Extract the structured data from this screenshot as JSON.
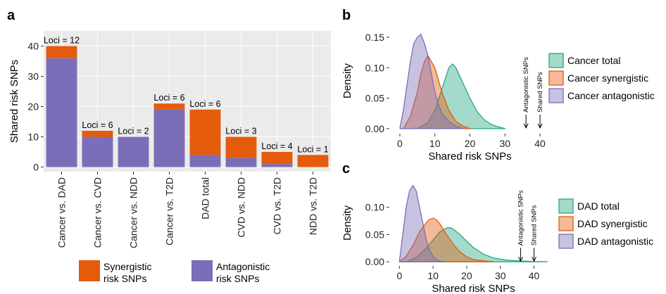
{
  "colors": {
    "synergistic": "#E35B0B",
    "antagonistic": "#7B6DB8",
    "total": "#25A884",
    "panel_bg": "#EBEBEB",
    "grid": "#FFFFFF"
  },
  "chart_data": [
    {
      "panel": "a",
      "type": "bar",
      "stacked": true,
      "ylabel": "Shared risk SNPs",
      "ylim": [
        0,
        45
      ],
      "yticks": [
        0,
        10,
        20,
        30,
        40
      ],
      "categories": [
        "Cancer vs. DAD",
        "Cancer vs. CVD",
        "Cancer vs. NDD",
        "Cancer vs. T2D",
        "DAD total",
        "CVD vs. NDD",
        "CVD vs. T2D",
        "NDD vs. T2D"
      ],
      "bar_labels": [
        "Loci = 12",
        "Loci = 6",
        "Loci = 2",
        "Loci = 6",
        "Loci = 6",
        "Loci = 3",
        "Loci = 4",
        "Loci = 1"
      ],
      "series": [
        {
          "name": "Antagonistic risk SNPs",
          "color_key": "antagonistic",
          "values": [
            36,
            10,
            10,
            19,
            4,
            3,
            1,
            0
          ]
        },
        {
          "name": "Synergistic risk SNPs",
          "color_key": "synergistic",
          "values": [
            4,
            2,
            0,
            2,
            15,
            7,
            4,
            4
          ]
        }
      ],
      "legend": [
        {
          "line1": "Synergistic",
          "line2": "risk SNPs",
          "color_key": "synergistic"
        },
        {
          "line1": "Antagonistic",
          "line2": "risk SNPs",
          "color_key": "antagonistic"
        }
      ],
      "legend_position": "bottom"
    },
    {
      "panel": "b",
      "type": "area",
      "xlabel": "Shared risk SNPs",
      "ylabel": "Density",
      "xlim": [
        -3,
        43
      ],
      "ylim": [
        0,
        0.165
      ],
      "xticks": [
        0,
        10,
        20,
        30,
        40
      ],
      "yticks": [
        0.0,
        0.05,
        0.1,
        0.15
      ],
      "ytick_labels": [
        "0.00",
        "0.05",
        "0.10",
        "0.15"
      ],
      "markers": [
        {
          "label": "Antagonistic SNPs",
          "x": 36
        },
        {
          "label": "Shared SNPs",
          "x": 40
        }
      ],
      "series": [
        {
          "name": "Cancer total",
          "color_key": "total",
          "x": [
            5,
            8,
            10,
            12,
            14,
            15,
            16,
            18,
            20,
            22,
            24,
            26,
            28,
            30
          ],
          "y": [
            0.0,
            0.01,
            0.03,
            0.065,
            0.1,
            0.106,
            0.1,
            0.075,
            0.05,
            0.028,
            0.015,
            0.007,
            0.003,
            0.0
          ]
        },
        {
          "name": "Cancer synergistic",
          "color_key": "synergistic",
          "x": [
            1,
            3,
            5,
            6,
            7,
            8,
            9,
            10,
            12,
            14,
            16,
            18,
            20
          ],
          "y": [
            0.0,
            0.02,
            0.06,
            0.09,
            0.11,
            0.12,
            0.11,
            0.1,
            0.06,
            0.03,
            0.012,
            0.004,
            0.0
          ]
        },
        {
          "name": "Cancer antagonistic",
          "color_key": "antagonistic",
          "x": [
            0,
            1,
            2,
            3,
            4,
            5,
            6,
            7,
            8,
            9,
            10,
            11,
            12,
            14,
            16,
            18
          ],
          "y": [
            0.0,
            0.03,
            0.07,
            0.11,
            0.14,
            0.15,
            0.155,
            0.14,
            0.12,
            0.09,
            0.06,
            0.04,
            0.025,
            0.012,
            0.004,
            0.0
          ]
        }
      ],
      "legend_position": "right"
    },
    {
      "panel": "c",
      "type": "area",
      "xlabel": "Shared risk SNPs",
      "ylabel": "Density",
      "xlim": [
        -3,
        47
      ],
      "ylim": [
        0,
        0.15
      ],
      "xticks": [
        0,
        10,
        20,
        30,
        40
      ],
      "yticks": [
        0.0,
        0.05,
        0.1
      ],
      "ytick_labels": [
        "0.00",
        "0.05",
        "0.10"
      ],
      "markers": [
        {
          "label": "Antagonistic SNPs",
          "x": 36
        },
        {
          "label": "Shared SNPs",
          "x": 40
        }
      ],
      "series": [
        {
          "name": "DAD total",
          "color_key": "total",
          "x": [
            2,
            5,
            8,
            10,
            12,
            14,
            15,
            16,
            18,
            20,
            22,
            25,
            28,
            32,
            36,
            40,
            44
          ],
          "y": [
            0.0,
            0.008,
            0.025,
            0.04,
            0.055,
            0.062,
            0.063,
            0.06,
            0.05,
            0.038,
            0.026,
            0.014,
            0.007,
            0.003,
            0.0015,
            0.0005,
            0.0
          ]
        },
        {
          "name": "DAD synergistic",
          "color_key": "synergistic",
          "x": [
            0,
            2,
            4,
            6,
            8,
            9,
            10,
            11,
            12,
            14,
            16,
            18,
            20,
            22,
            25,
            28
          ],
          "y": [
            0.0,
            0.01,
            0.03,
            0.055,
            0.072,
            0.078,
            0.08,
            0.077,
            0.07,
            0.05,
            0.032,
            0.018,
            0.009,
            0.004,
            0.0015,
            0.0
          ]
        },
        {
          "name": "DAD antagonistic",
          "color_key": "antagonistic",
          "x": [
            0,
            1,
            2,
            3,
            4,
            5,
            6,
            7,
            8,
            9,
            10,
            11,
            12,
            14
          ],
          "y": [
            0.0,
            0.05,
            0.1,
            0.13,
            0.14,
            0.13,
            0.1,
            0.07,
            0.04,
            0.02,
            0.01,
            0.004,
            0.001,
            0.0
          ]
        }
      ],
      "legend_position": "right"
    }
  ],
  "panels": {
    "a": "a",
    "b": "b",
    "c": "c"
  }
}
